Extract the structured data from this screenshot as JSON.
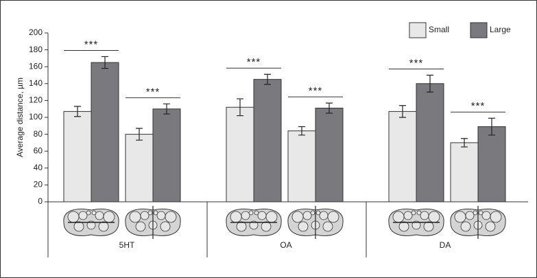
{
  "chart_data": {
    "type": "bar",
    "y_label": "Average distance, µm",
    "categories": [
      null,
      null,
      null,
      null,
      null,
      null
    ],
    "groups": [
      "5HT",
      "OA",
      "DA"
    ],
    "series": [
      {
        "name": "Small",
        "color": "#e8e8e8",
        "values": [
          107,
          80,
          112,
          84,
          107,
          70
        ],
        "errors": [
          6,
          7,
          10,
          5,
          7,
          5
        ]
      },
      {
        "name": "Large",
        "color": "#7a7a7e",
        "values": [
          165,
          110,
          145,
          111,
          140,
          89
        ],
        "errors": [
          7,
          6,
          6,
          6,
          10,
          10
        ]
      }
    ],
    "annotations": [
      "***",
      "***",
      "***",
      "***",
      "***",
      "***"
    ],
    "ylim": [
      0,
      200
    ],
    "yticks": [
      0,
      20,
      40,
      60,
      80,
      100,
      120,
      140,
      160,
      180,
      200
    ],
    "legend": "top-right"
  }
}
